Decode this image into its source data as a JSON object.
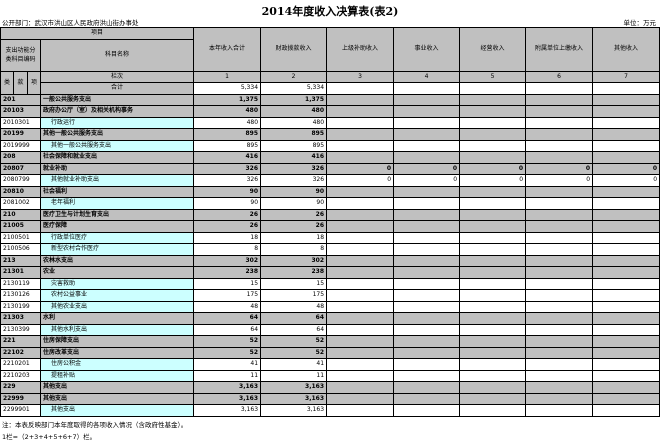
{
  "title": "2014年度收入决算表(表2)",
  "department": "公开部门：武汉市洪山区人民政府洪山街办事处",
  "unit": "单位：万元",
  "header": {
    "project": "项目",
    "code_label": "支出功能分类科目编码",
    "name_label": "科目名称",
    "lei": "类",
    "kuan": "款",
    "xiang": "项",
    "columns": [
      "本年收入合计",
      "财政拨款收入",
      "上级补助收入",
      "事业收入",
      "经营收入",
      "附属单位上缴收入",
      "其他收入"
    ],
    "row_no_label": "栏次",
    "col_nums": [
      "1",
      "2",
      "3",
      "4",
      "5",
      "6",
      "7"
    ],
    "total_label": "合计",
    "total_values": [
      "5,334",
      "5,334",
      "",
      "",
      "",
      "",
      ""
    ]
  },
  "rows": [
    {
      "code": "201",
      "name": "一般公共服务支出",
      "level": "cat",
      "values": [
        "1,375",
        "1,375",
        "",
        "",
        "",
        "",
        ""
      ]
    },
    {
      "code": "20103",
      "name": "政府办公厅（室）及相关机构事务",
      "level": "cat",
      "values": [
        "480",
        "480",
        "",
        "",
        "",
        "",
        ""
      ]
    },
    {
      "code": "2010301",
      "name": "行政运行",
      "level": "item",
      "values": [
        "480",
        "480",
        "",
        "",
        "",
        "",
        ""
      ]
    },
    {
      "code": "20199",
      "name": "其他一般公共服务支出",
      "level": "cat",
      "values": [
        "895",
        "895",
        "",
        "",
        "",
        "",
        ""
      ]
    },
    {
      "code": "2019999",
      "name": "其他一般公共服务支出",
      "level": "item",
      "values": [
        "895",
        "895",
        "",
        "",
        "",
        "",
        ""
      ]
    },
    {
      "code": "208",
      "name": "社会保障和就业支出",
      "level": "cat",
      "values": [
        "416",
        "416",
        "",
        "",
        "",
        "",
        ""
      ]
    },
    {
      "code": "20807",
      "name": "就业补助",
      "level": "cat",
      "values": [
        "326",
        "326",
        "0",
        "0",
        "0",
        "0",
        "0"
      ]
    },
    {
      "code": "2080799",
      "name": "其他就业补助支出",
      "level": "item",
      "values": [
        "326",
        "326",
        "0",
        "0",
        "0",
        "0",
        "0"
      ]
    },
    {
      "code": "20810",
      "name": "社会福利",
      "level": "cat",
      "values": [
        "90",
        "90",
        "",
        "",
        "",
        "",
        ""
      ]
    },
    {
      "code": "2081002",
      "name": "老年福利",
      "level": "item",
      "values": [
        "90",
        "90",
        "",
        "",
        "",
        "",
        ""
      ]
    },
    {
      "code": "210",
      "name": "医疗卫生与计划生育支出",
      "level": "cat",
      "values": [
        "26",
        "26",
        "",
        "",
        "",
        "",
        ""
      ]
    },
    {
      "code": "21005",
      "name": "医疗保障",
      "level": "cat",
      "values": [
        "26",
        "26",
        "",
        "",
        "",
        "",
        ""
      ]
    },
    {
      "code": "2100501",
      "name": "行政单位医疗",
      "level": "item",
      "values": [
        "18",
        "18",
        "",
        "",
        "",
        "",
        ""
      ]
    },
    {
      "code": "2100506",
      "name": "新型农村合作医疗",
      "level": "item",
      "values": [
        "8",
        "8",
        "",
        "",
        "",
        "",
        ""
      ]
    },
    {
      "code": "213",
      "name": "农林水支出",
      "level": "cat",
      "values": [
        "302",
        "302",
        "",
        "",
        "",
        "",
        ""
      ]
    },
    {
      "code": "21301",
      "name": "农业",
      "level": "cat",
      "values": [
        "238",
        "238",
        "",
        "",
        "",
        "",
        ""
      ]
    },
    {
      "code": "2130119",
      "name": "灾害救助",
      "level": "item",
      "values": [
        "15",
        "15",
        "",
        "",
        "",
        "",
        ""
      ]
    },
    {
      "code": "2130126",
      "name": "农村公益事业",
      "level": "item",
      "values": [
        "175",
        "175",
        "",
        "",
        "",
        "",
        ""
      ]
    },
    {
      "code": "2130199",
      "name": "其他农业支出",
      "level": "item",
      "values": [
        "48",
        "48",
        "",
        "",
        "",
        "",
        ""
      ]
    },
    {
      "code": "21303",
      "name": "水利",
      "level": "cat",
      "values": [
        "64",
        "64",
        "",
        "",
        "",
        "",
        ""
      ]
    },
    {
      "code": "2130399",
      "name": "其他水利支出",
      "level": "item",
      "values": [
        "64",
        "64",
        "",
        "",
        "",
        "",
        ""
      ]
    },
    {
      "code": "221",
      "name": "住房保障支出",
      "level": "cat",
      "values": [
        "52",
        "52",
        "",
        "",
        "",
        "",
        ""
      ]
    },
    {
      "code": "22102",
      "name": "住房改革支出",
      "level": "cat",
      "values": [
        "52",
        "52",
        "",
        "",
        "",
        "",
        ""
      ]
    },
    {
      "code": "2210201",
      "name": "住房公积金",
      "level": "item",
      "values": [
        "41",
        "41",
        "",
        "",
        "",
        "",
        ""
      ]
    },
    {
      "code": "2210203",
      "name": "提租补贴",
      "level": "item",
      "values": [
        "11",
        "11",
        "",
        "",
        "",
        "",
        ""
      ]
    },
    {
      "code": "229",
      "name": "其他支出",
      "level": "cat",
      "values": [
        "3,163",
        "3,163",
        "",
        "",
        "",
        "",
        ""
      ]
    },
    {
      "code": "22999",
      "name": "其他支出",
      "level": "cat",
      "values": [
        "3,163",
        "3,163",
        "",
        "",
        "",
        "",
        ""
      ]
    },
    {
      "code": "2299901",
      "name": "其他支出",
      "level": "item",
      "values": [
        "3,163",
        "3,163",
        "",
        "",
        "",
        "",
        ""
      ]
    }
  ],
  "notes": [
    "注：本表反映部门本年度取得的各项收入情况（含政府性基金）。",
    "1栏=（2+3+4+5+6+7）栏。"
  ],
  "colors": {
    "header_gray": "#c0c0c0",
    "item_name_cyan": "#ccffff"
  }
}
